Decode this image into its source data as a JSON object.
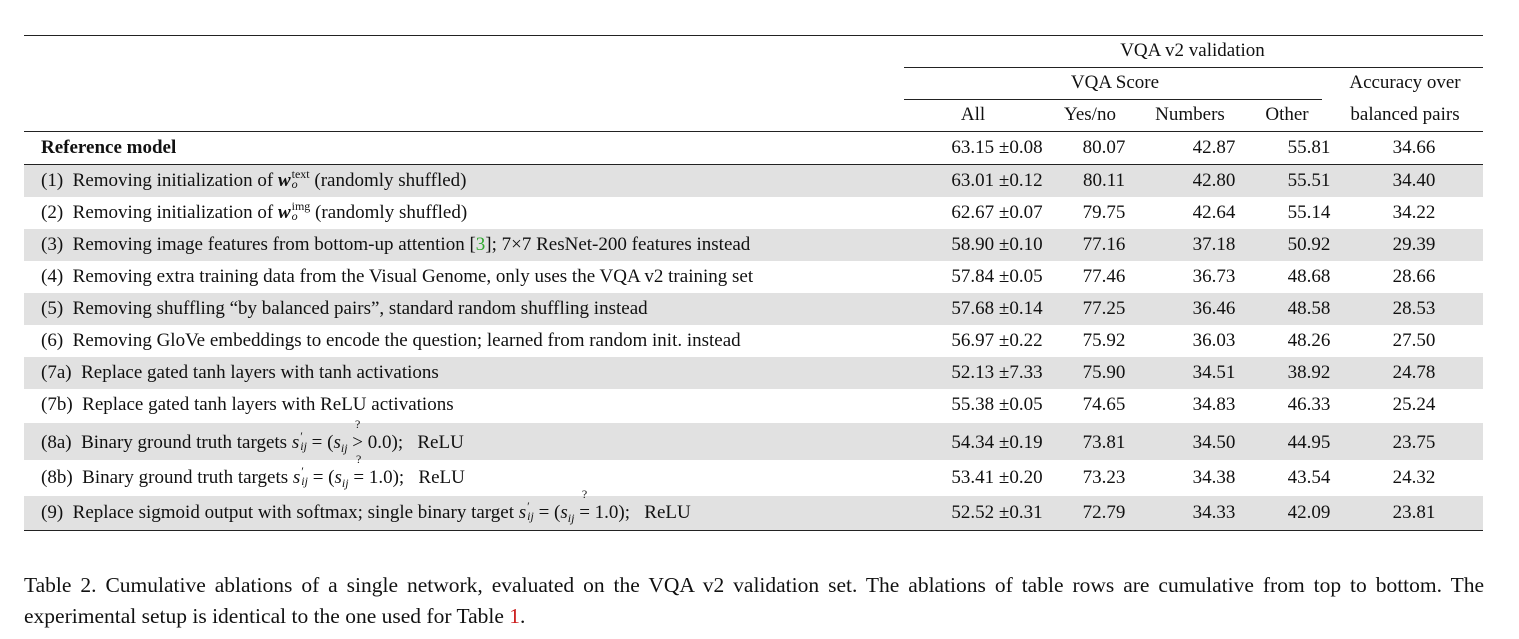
{
  "header": {
    "group_title": "VQA v2 validation",
    "score_group": "VQA Score",
    "col_all": "All",
    "col_yesno": "Yes/no",
    "col_numbers": "Numbers",
    "col_other": "Other",
    "col_acc_line1": "Accuracy over",
    "col_acc_line2": "balanced pairs"
  },
  "reference": {
    "label": "Reference model",
    "all": "63.15 ±0.08",
    "yesno": "80.07",
    "numbers": "42.87",
    "other": "55.81",
    "acc": "34.66"
  },
  "rows": [
    {
      "id": "(1)",
      "pre": "Removing initialization of ",
      "w": "w",
      "wsup": "text",
      "wsub": "o",
      "post": " (randomly shuffled)",
      "all": "63.01 ±0.12",
      "yesno": "80.11",
      "numbers": "42.80",
      "other": "55.51",
      "acc": "34.40"
    },
    {
      "id": "(2)",
      "pre": "Removing initialization of ",
      "w": "w",
      "wsup": "img",
      "wsub": "o",
      "post": " (randomly shuffled)",
      "all": "62.67 ±0.07",
      "yesno": "79.75",
      "numbers": "42.64",
      "other": "55.14",
      "acc": "34.22"
    },
    {
      "id": "(3)",
      "pre": "Removing image features from bottom-up attention [",
      "ref": "3",
      "post": "]; 7×7 ResNet-200 features instead",
      "all": "58.90 ±0.10",
      "yesno": "77.16",
      "numbers": "37.18",
      "other": "50.92",
      "acc": "29.39"
    },
    {
      "id": "(4)",
      "text": "Removing extra training data from the Visual Genome, only uses the VQA v2 training set",
      "all": "57.84 ±0.05",
      "yesno": "77.46",
      "numbers": "36.73",
      "other": "48.68",
      "acc": "28.66"
    },
    {
      "id": "(5)",
      "text": "Removing shuffling “by balanced pairs”, standard random shuffling instead",
      "all": "57.68 ±0.14",
      "yesno": "77.25",
      "numbers": "36.46",
      "other": "48.58",
      "acc": "28.53"
    },
    {
      "id": "(6)",
      "text": "Removing GloVe embeddings to encode the question; learned from random init. instead",
      "all": "56.97 ±0.22",
      "yesno": "75.92",
      "numbers": "36.03",
      "other": "48.26",
      "acc": "27.50"
    },
    {
      "id": "(7a)",
      "text": "Replace gated tanh layers with tanh activations",
      "all": "52.13 ±7.33",
      "yesno": "75.90",
      "numbers": "34.51",
      "other": "38.92",
      "acc": "24.78"
    },
    {
      "id": "(7b)",
      "text": "Replace gated tanh layers with ReLU activations",
      "all": "55.38 ±0.05",
      "yesno": "74.65",
      "numbers": "34.83",
      "other": "46.33",
      "acc": "25.24"
    },
    {
      "id": "(8a)",
      "pre": "Binary ground truth targets ",
      "op": ">",
      "thr": "0.0",
      "post": "ReLU",
      "all": "54.34 ±0.19",
      "yesno": "73.81",
      "numbers": "34.50",
      "other": "44.95",
      "acc": "23.75"
    },
    {
      "id": "(8b)",
      "pre": "Binary ground truth targets ",
      "op": "=",
      "thr": "1.0",
      "post": "ReLU",
      "all": "53.41 ±0.20",
      "yesno": "73.23",
      "numbers": "34.38",
      "other": "43.54",
      "acc": "24.32"
    },
    {
      "id": "(9)",
      "pre": "Replace sigmoid output with softmax; single binary target ",
      "op": "=",
      "thr": "1.0",
      "post": "ReLU",
      "all": "52.52 ±0.31",
      "yesno": "72.79",
      "numbers": "34.33",
      "other": "42.09",
      "acc": "23.81"
    }
  ],
  "caption": {
    "part1": "Table 2. Cumulative ablations of a single network, evaluated on the VQA v2 validation set. The ablations of table rows are cumulative from top to bottom. The experimental setup is identical to the one used for Table ",
    "ref": "1",
    "part2": "."
  }
}
